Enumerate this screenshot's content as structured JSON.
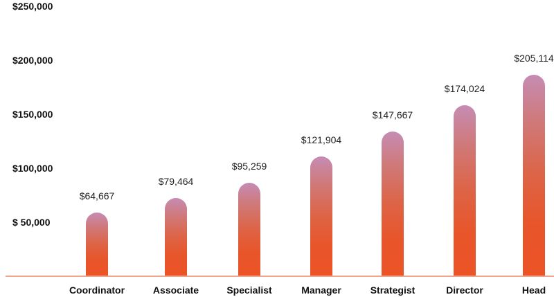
{
  "chart_data": {
    "type": "bar",
    "title": "",
    "xlabel": "",
    "ylabel": "",
    "categories": [
      "Coordinator",
      "Associate",
      "Specialist",
      "Manager",
      "Strategist",
      "Director",
      "Head"
    ],
    "values": [
      64667,
      79464,
      95259,
      121904,
      147667,
      174024,
      205114
    ],
    "value_labels": [
      "$64,667",
      "$79,464",
      "$95,259",
      "$121,904",
      "$147,667",
      "$174,024",
      "$205,114"
    ],
    "ylim": [
      0,
      250000
    ],
    "y_ticks": [
      50000,
      100000,
      150000,
      200000,
      250000
    ],
    "y_tick_labels": [
      "$ 50,000",
      "$100,000",
      "$150,000",
      "$200,000",
      "$250,000"
    ],
    "grid": false,
    "legend": null,
    "colors": {
      "bar_top": "#c68cb4",
      "bar_bottom": "#eb5426",
      "baseline": "#f0a48c"
    }
  }
}
